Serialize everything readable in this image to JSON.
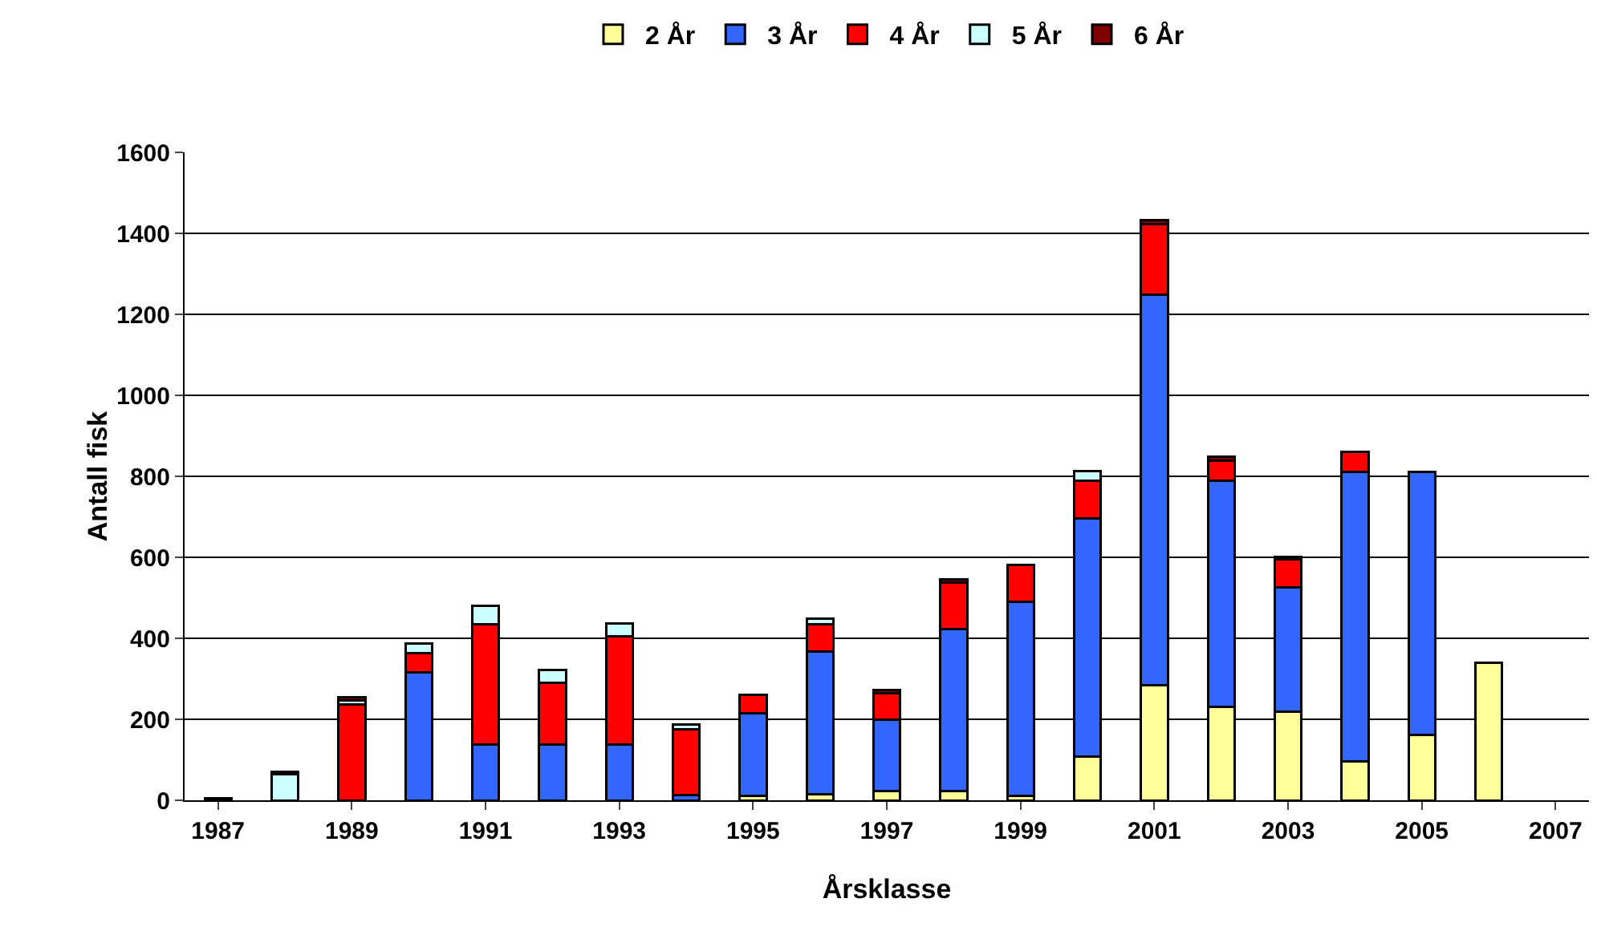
{
  "chart_data": {
    "type": "bar",
    "stacked": true,
    "xlabel": "Årsklasse",
    "ylabel": "Antall fisk",
    "categories": [
      "1987",
      null,
      "1989",
      null,
      "1991",
      null,
      "1993",
      null,
      "1995",
      null,
      "1997",
      null,
      "1999",
      null,
      "2001",
      null,
      "2003",
      null,
      "2005",
      null,
      "2007"
    ],
    "series": [
      {
        "name": "2 År",
        "color": "#ffff99",
        "values": [
          null,
          null,
          null,
          null,
          null,
          null,
          null,
          null,
          10,
          15,
          22,
          22,
          10,
          108,
          285,
          230,
          218,
          97,
          162,
          340,
          null
        ]
      },
      {
        "name": "3 År",
        "color": "#3366ff",
        "values": [
          null,
          null,
          null,
          315,
          138,
          138,
          138,
          12,
          205,
          353,
          178,
          400,
          480,
          589,
          963,
          560,
          307,
          713,
          648,
          null,
          null
        ]
      },
      {
        "name": "4 År",
        "color": "#ff0000",
        "values": [
          null,
          null,
          237,
          48,
          297,
          152,
          267,
          163,
          45,
          67,
          65,
          115,
          92,
          93,
          174,
          48,
          70,
          50,
          null,
          null,
          null
        ]
      },
      {
        "name": "5 År",
        "color": "#ccffff",
        "values": [
          null,
          65,
          10,
          25,
          45,
          32,
          32,
          12,
          null,
          13,
          null,
          null,
          null,
          22,
          null,
          null,
          null,
          null,
          null,
          null,
          null
        ]
      },
      {
        "name": "6 År",
        "color": "#800000",
        "values": [
          5,
          5,
          8,
          null,
          null,
          null,
          null,
          null,
          null,
          null,
          8,
          8,
          null,
          null,
          10,
          10,
          7,
          null,
          null,
          null,
          null
        ]
      }
    ],
    "ylim": [
      0,
      1600
    ],
    "yticks": [
      0,
      200,
      400,
      600,
      800,
      1000,
      1200,
      1400,
      1600
    ],
    "grid": "y",
    "legend": "top"
  }
}
